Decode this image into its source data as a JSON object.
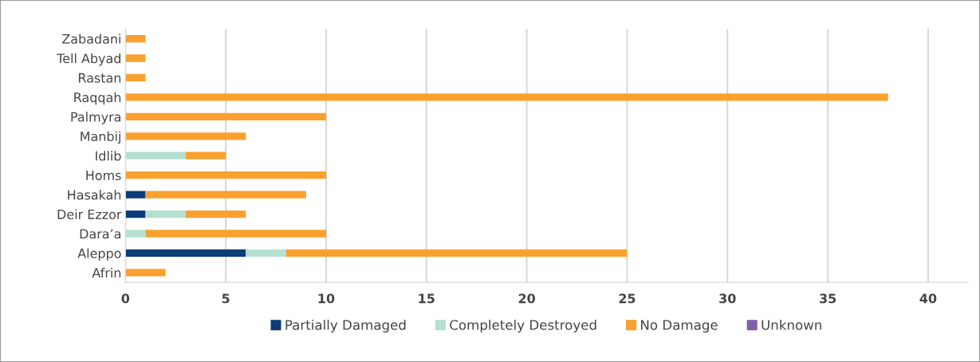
{
  "chart_data": {
    "type": "bar",
    "orientation": "horizontal",
    "stacked": true,
    "categories": [
      "Zabadani",
      "Tell Abyad",
      "Rastan",
      "Raqqah",
      "Palmyra",
      "Manbij",
      "Idlib",
      "Homs",
      "Hasakah",
      "Deir Ezzor",
      "Dara’a",
      "Aleppo",
      "Afrin"
    ],
    "series": [
      {
        "name": "Partially Damaged",
        "color": "#0b3d78",
        "values": [
          null,
          null,
          null,
          null,
          null,
          null,
          null,
          null,
          1,
          1,
          null,
          6,
          null
        ]
      },
      {
        "name": "Completely Destroyed",
        "color": "#b5e0d0",
        "values": [
          null,
          null,
          null,
          null,
          null,
          null,
          3,
          null,
          null,
          2,
          1,
          2,
          null
        ]
      },
      {
        "name": "No Damage",
        "color": "#f9a12e",
        "values": [
          1,
          1,
          1,
          38,
          10,
          6,
          2,
          10,
          8,
          3,
          9,
          17,
          2
        ]
      },
      {
        "name": "Unknown",
        "color": "#7f5fa8",
        "values": [
          null,
          null,
          null,
          null,
          null,
          null,
          null,
          null,
          null,
          null,
          null,
          null,
          null
        ]
      }
    ],
    "xlim": [
      0,
      42
    ],
    "xticks": [
      0,
      5,
      10,
      15,
      20,
      25,
      30,
      35,
      40
    ],
    "grid": "x",
    "legend": "bottom"
  }
}
